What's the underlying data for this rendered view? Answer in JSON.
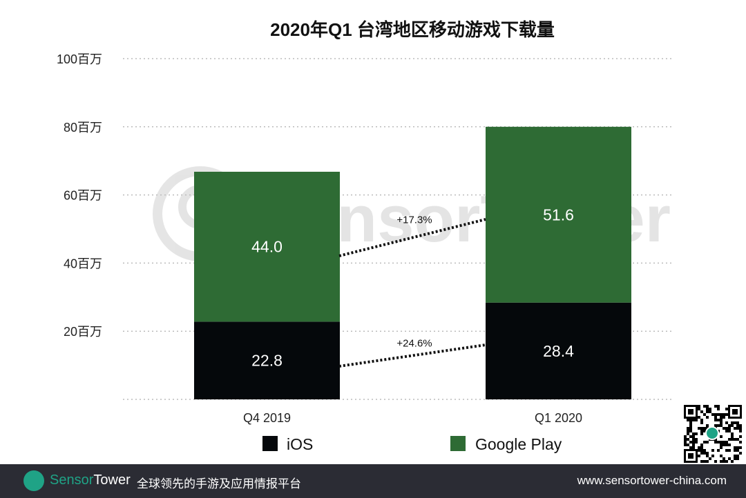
{
  "chart_data": {
    "type": "stacked-bar",
    "title": "2020年Q1 台湾地区移动游戏下载量",
    "categories": [
      "Q4  2019",
      "Q1 2020"
    ],
    "series": [
      {
        "name": "iOS",
        "values": [
          22.8,
          28.4
        ],
        "color": "#05080b",
        "labels": [
          "22.8",
          "28.4"
        ]
      },
      {
        "name": "Google Play",
        "values": [
          44.0,
          51.6
        ],
        "color": "#2e6b34",
        "labels": [
          "44.0",
          "51.6"
        ]
      }
    ],
    "growth_annotations": [
      {
        "series": "iOS",
        "label": "+24.6%"
      },
      {
        "series": "Google Play",
        "label": "+17.3%"
      }
    ],
    "ylim": [
      0,
      100
    ],
    "yticks": [
      0,
      20,
      40,
      60,
      80,
      100
    ],
    "ytick_labels": [
      "",
      "20百万",
      "40百万",
      "60百万",
      "80百万",
      "100百万"
    ],
    "grid": true,
    "legend_position": "bottom",
    "watermark": "SensorTower"
  },
  "footer": {
    "brand_part1": "Sensor",
    "brand_part2": "Tower",
    "tagline": "全球领先的手游及应用情报平台",
    "url": "www.sensortower-china.com"
  }
}
